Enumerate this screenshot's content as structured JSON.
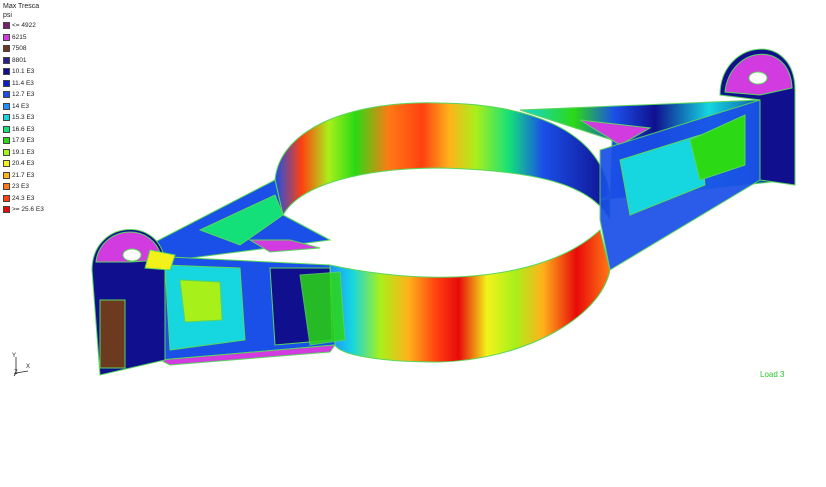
{
  "legend": {
    "title": "Max Tresca",
    "unit": "psi",
    "entries": [
      {
        "label": "<= 4922",
        "color": "#7a1f6e"
      },
      {
        "label": "6215",
        "color": "#d23be0"
      },
      {
        "label": "7508",
        "color": "#6b3a1f"
      },
      {
        "label": "8801",
        "color": "#2a1e8c"
      },
      {
        "label": "10.1 E3",
        "color": "#10108f"
      },
      {
        "label": "11.4 E3",
        "color": "#0c1ec8"
      },
      {
        "label": "12.7 E3",
        "color": "#1a4fe8"
      },
      {
        "label": "14 E3",
        "color": "#1e90ff"
      },
      {
        "label": "15.3 E3",
        "color": "#16d6e0"
      },
      {
        "label": "16.6 E3",
        "color": "#14e07a"
      },
      {
        "label": "17.9 E3",
        "color": "#2bd914"
      },
      {
        "label": "19.1 E3",
        "color": "#a8f01a"
      },
      {
        "label": "20.4 E3",
        "color": "#f2f21a"
      },
      {
        "label": "21.7 E3",
        "color": "#ffb21a"
      },
      {
        "label": "23 E3",
        "color": "#ff7a14"
      },
      {
        "label": "24.3 E3",
        "color": "#ff4010"
      },
      {
        "label": ">= 25.6 E3",
        "color": "#e80a0a"
      }
    ]
  },
  "load_case": "Load 3",
  "triad": {
    "axis_y": "Y",
    "axis_x": "X",
    "axis_z": "Z"
  },
  "colors": {
    "edge": "#5ad65a",
    "background": "#ffffff"
  }
}
